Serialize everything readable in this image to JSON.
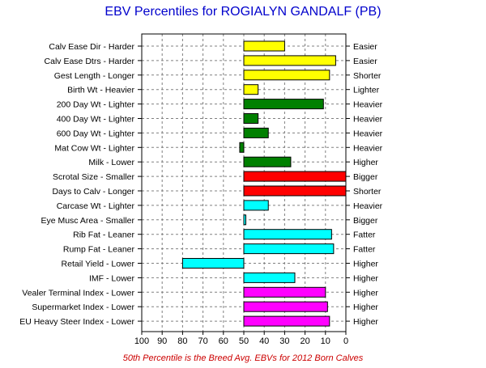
{
  "chart_data": {
    "type": "bar",
    "orientation": "horizontal",
    "title": "EBV Percentiles for ROGIALYN GANDALF (PB)",
    "footnote": "50th Percentile is the Breed Avg. EBVs for 2012 Born Calves",
    "xlim": [
      100,
      0
    ],
    "baseline": 50,
    "x_ticks": [
      100,
      90,
      80,
      70,
      60,
      50,
      40,
      30,
      20,
      10,
      0
    ],
    "grid": true,
    "rows": [
      {
        "left": "Calv Ease Dir - Harder",
        "right": "Easier",
        "value": 30,
        "color": "#ffff00"
      },
      {
        "left": "Calv Ease Dtrs - Harder",
        "right": "Easier",
        "value": 5,
        "color": "#ffff00"
      },
      {
        "left": "Gest Length - Longer",
        "right": "Shorter",
        "value": 8,
        "color": "#ffff00"
      },
      {
        "left": "Birth Wt - Heavier",
        "right": "Lighter",
        "value": 43,
        "color": "#ffff00"
      },
      {
        "left": "200 Day Wt - Lighter",
        "right": "Heavier",
        "value": 11,
        "color": "#008000"
      },
      {
        "left": "400 Day Wt - Lighter",
        "right": "Heavier",
        "value": 43,
        "color": "#008000"
      },
      {
        "left": "600 Day Wt - Lighter",
        "right": "Heavier",
        "value": 38,
        "color": "#008000"
      },
      {
        "left": "Mat Cow Wt - Lighter",
        "right": "Heavier",
        "value": 52,
        "color": "#008000"
      },
      {
        "left": "Milk - Lower",
        "right": "Higher",
        "value": 27,
        "color": "#008000"
      },
      {
        "left": "Scrotal Size - Smaller",
        "right": "Bigger",
        "value": 0,
        "color": "#ff0000"
      },
      {
        "left": "Days to Calv - Longer",
        "right": "Shorter",
        "value": 0,
        "color": "#ff0000"
      },
      {
        "left": "Carcase Wt - Lighter",
        "right": "Heavier",
        "value": 38,
        "color": "#00ffff"
      },
      {
        "left": "Eye Musc Area - Smaller",
        "right": "Bigger",
        "value": 49,
        "color": "#00ffff"
      },
      {
        "left": "Rib Fat - Leaner",
        "right": "Fatter",
        "value": 7,
        "color": "#00ffff"
      },
      {
        "left": "Rump Fat - Leaner",
        "right": "Fatter",
        "value": 6,
        "color": "#00ffff"
      },
      {
        "left": "Retail Yield - Lower",
        "right": "Higher",
        "value": 80,
        "color": "#00ffff"
      },
      {
        "left": "IMF - Lower",
        "right": "Higher",
        "value": 25,
        "color": "#00ffff"
      },
      {
        "left": "Vealer Terminal Index - Lower",
        "right": "Higher",
        "value": 10,
        "color": "#ff00ff"
      },
      {
        "left": "Supermarket Index - Lower",
        "right": "Higher",
        "value": 9,
        "color": "#ff00ff"
      },
      {
        "left": "EU Heavy Steer Index - Lower",
        "right": "Higher",
        "value": 8,
        "color": "#ff00ff"
      }
    ]
  }
}
